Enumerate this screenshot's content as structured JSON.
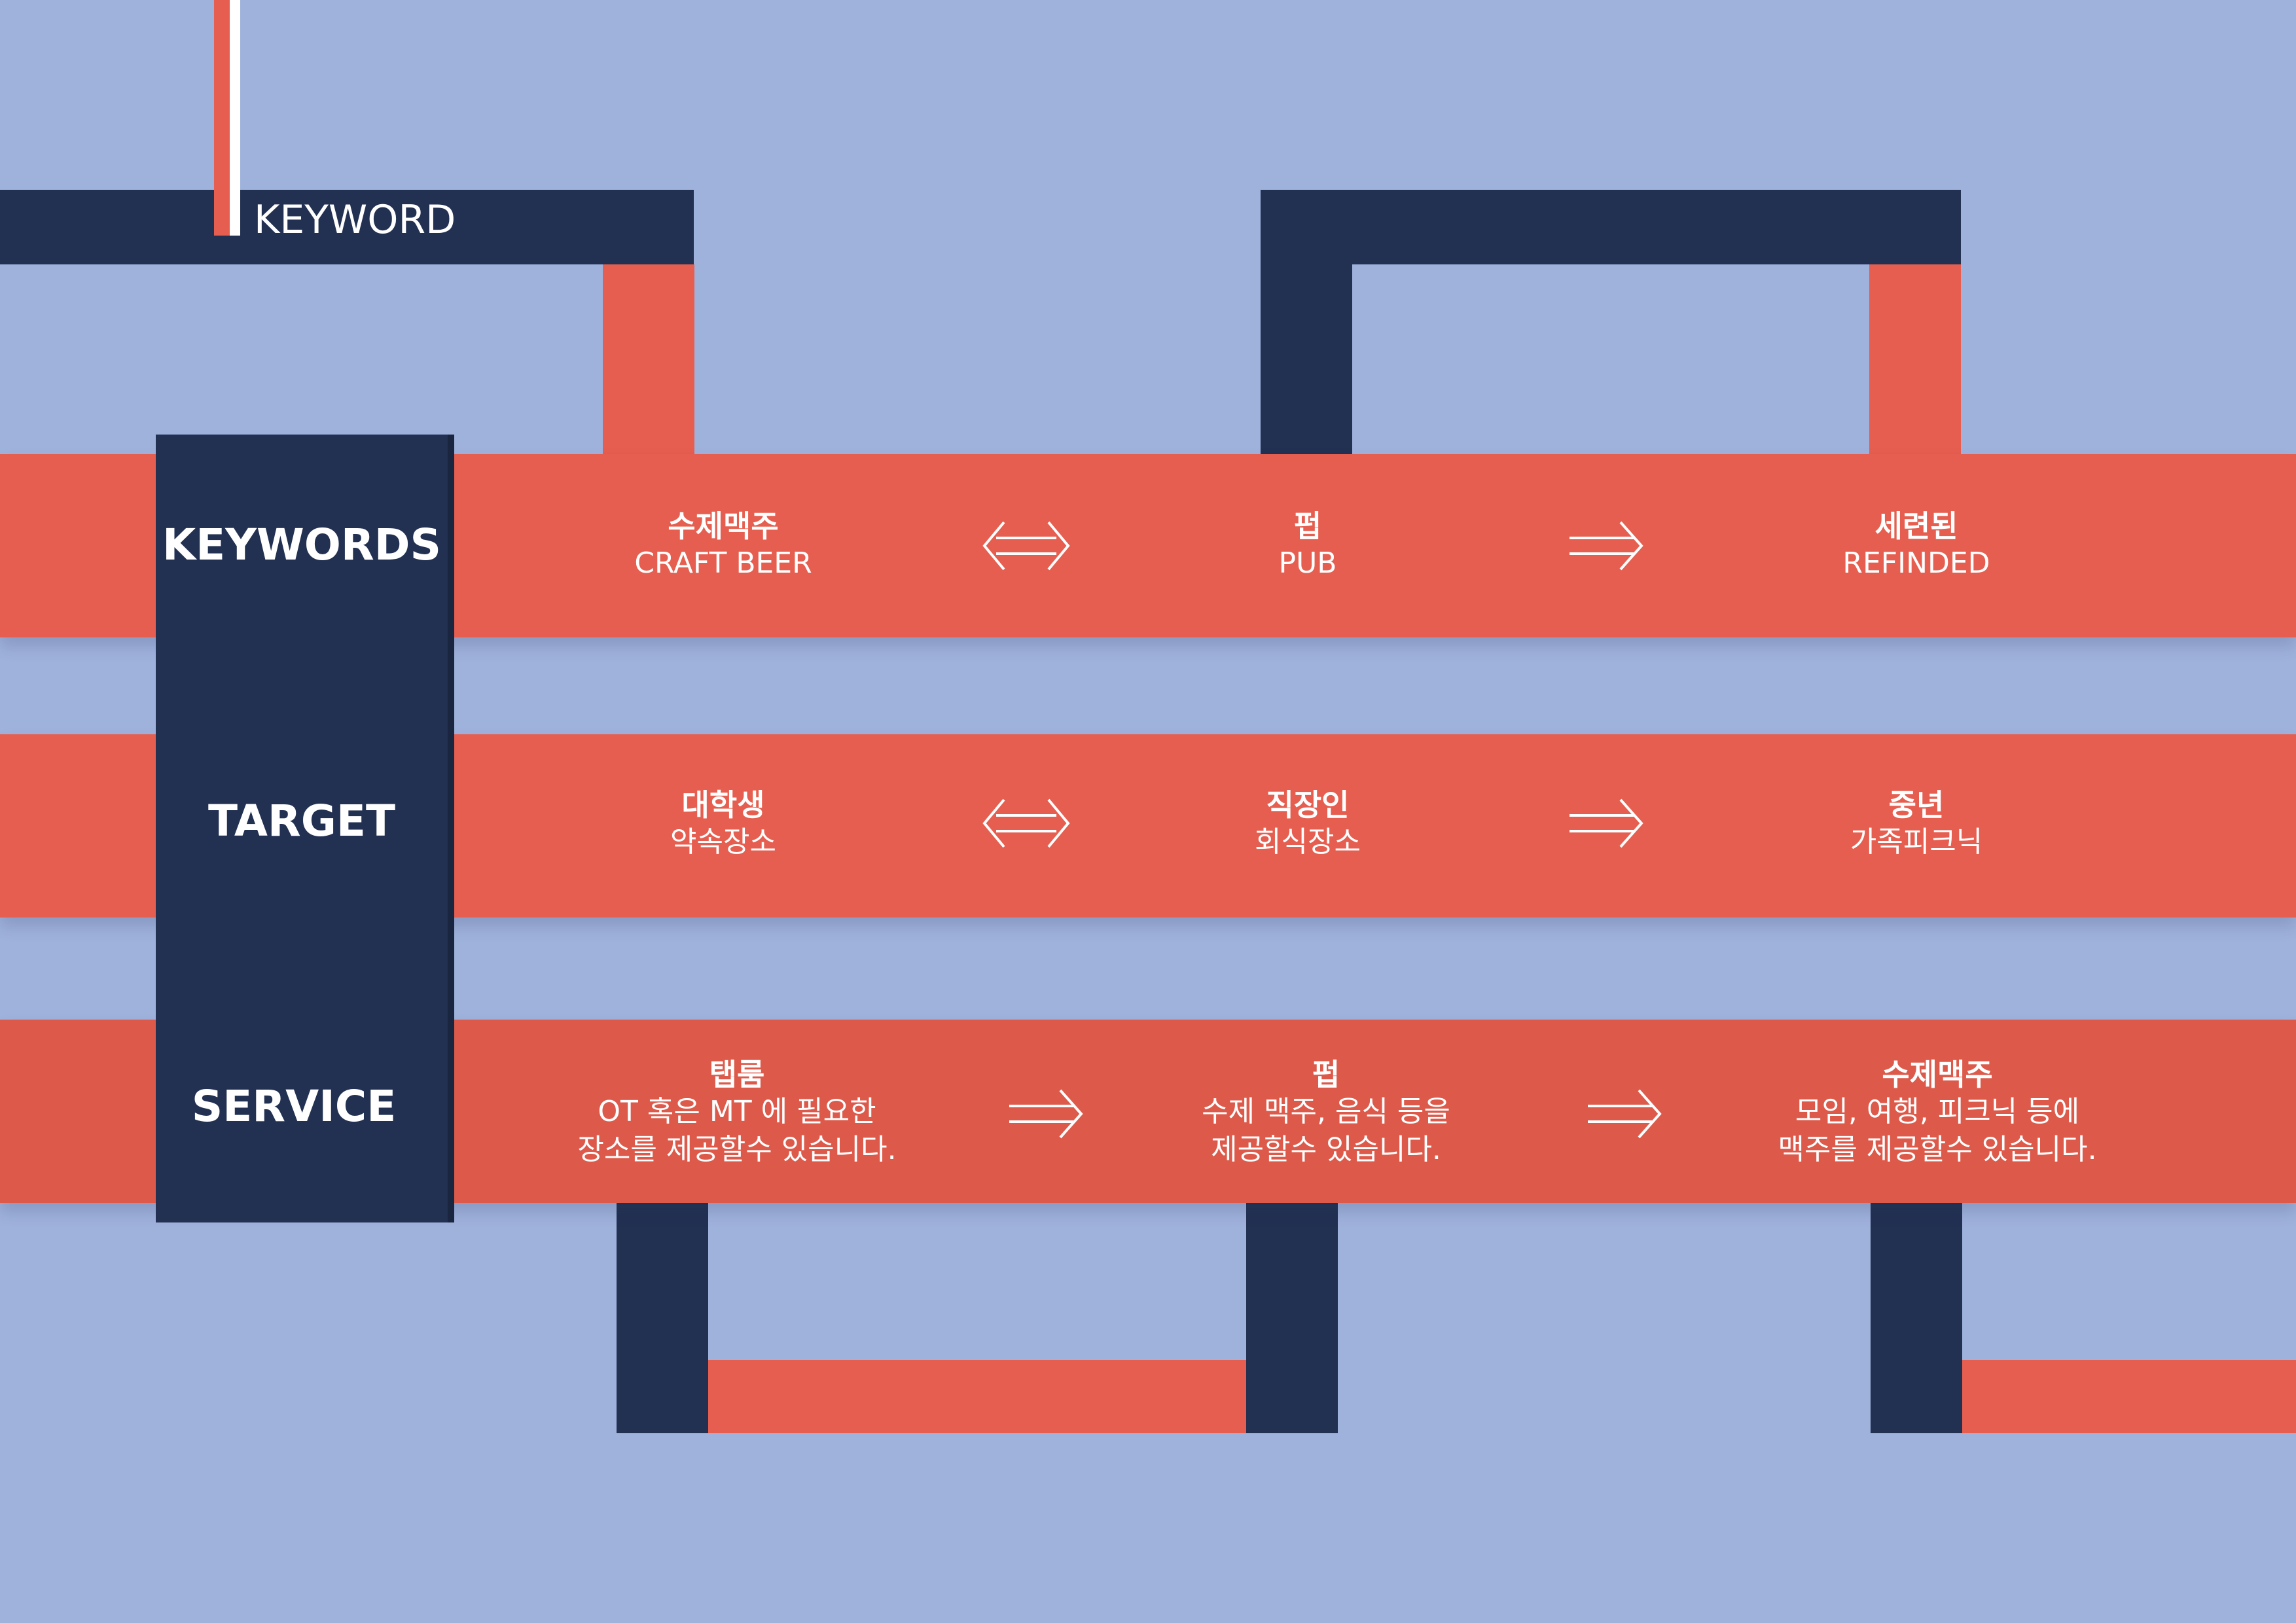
{
  "header": {
    "keyword_label": "KEYWORD"
  },
  "colors": {
    "background": "#9fb2dc",
    "navy": "#223052",
    "coral": "#e65e4f",
    "text": "#ffffff"
  },
  "rows": [
    {
      "label": "KEYWORDS",
      "items": [
        {
          "title": "수제맥주",
          "lines": [
            "CRAFT BEER"
          ]
        },
        {
          "title": "펍",
          "lines": [
            "PUB"
          ]
        },
        {
          "title": "세련된",
          "lines": [
            "REFINDED"
          ]
        }
      ],
      "arrows": [
        "double-arrow-icon",
        "right-arrow-icon"
      ]
    },
    {
      "label": "TARGET",
      "items": [
        {
          "title": "대학생",
          "lines": [
            "약속장소"
          ]
        },
        {
          "title": "직장인",
          "lines": [
            "회식장소"
          ]
        },
        {
          "title": "중년",
          "lines": [
            "가족피크닉"
          ]
        }
      ],
      "arrows": [
        "double-arrow-icon",
        "right-arrow-icon"
      ]
    },
    {
      "label": "SERVICE",
      "items": [
        {
          "title": "탭룸",
          "lines": [
            "OT 혹은 MT 에 필요한",
            "장소를 제공할수 있습니다."
          ]
        },
        {
          "title": "펍",
          "lines": [
            "수제 맥주, 음식 등을",
            "제공할수 있습니다."
          ]
        },
        {
          "title": "수제맥주",
          "lines": [
            "모임, 여행, 피크닉 등에",
            "맥주를 제공할수 있습니다."
          ]
        }
      ],
      "arrows": [
        "right-arrow-icon",
        "right-arrow-icon"
      ]
    }
  ]
}
